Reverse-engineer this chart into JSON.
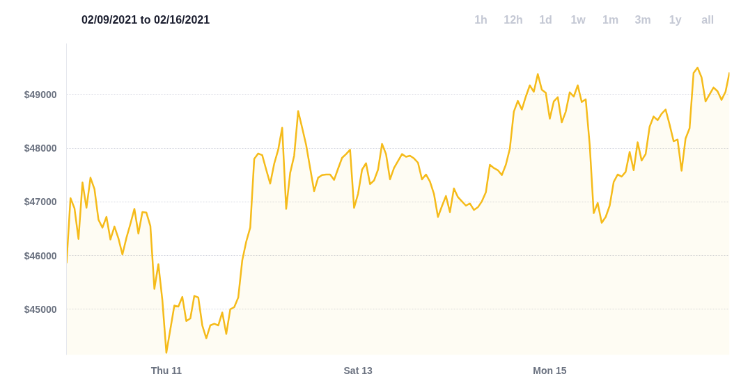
{
  "chart_data": {
    "type": "area",
    "title": "02/09/2021 to 02/16/2021",
    "annotations": [
      "1h",
      "12h",
      "1d",
      "1w",
      "1m",
      "3m",
      "1y",
      "all"
    ],
    "x": [
      "2021-02-09T23:00",
      "2021-02-10T00:00",
      "2021-02-10T01:00",
      "2021-02-10T02:00",
      "2021-02-10T03:00",
      "2021-02-10T04:00",
      "2021-02-10T05:00",
      "2021-02-10T06:00",
      "2021-02-10T07:00",
      "2021-02-10T08:00",
      "2021-02-10T09:00",
      "2021-02-10T10:00",
      "2021-02-10T11:00",
      "2021-02-10T12:00",
      "2021-02-10T13:00",
      "2021-02-10T14:00",
      "2021-02-10T15:00",
      "2021-02-10T16:00",
      "2021-02-10T17:00",
      "2021-02-10T18:00",
      "2021-02-10T19:00",
      "2021-02-10T20:00",
      "2021-02-10T21:00",
      "2021-02-10T22:00",
      "2021-02-10T23:00",
      "2021-02-11T00:00",
      "2021-02-11T01:00",
      "2021-02-11T02:00",
      "2021-02-11T03:00",
      "2021-02-11T04:00",
      "2021-02-11T05:00",
      "2021-02-11T06:00",
      "2021-02-11T07:00",
      "2021-02-11T08:00",
      "2021-02-11T09:00",
      "2021-02-11T10:00",
      "2021-02-11T11:00",
      "2021-02-11T12:00",
      "2021-02-11T13:00",
      "2021-02-11T14:00",
      "2021-02-11T15:00",
      "2021-02-11T16:00",
      "2021-02-11T17:00",
      "2021-02-11T18:00",
      "2021-02-11T19:00",
      "2021-02-11T20:00",
      "2021-02-11T21:00",
      "2021-02-11T22:00",
      "2021-02-11T23:00",
      "2021-02-12T00:00",
      "2021-02-12T01:00",
      "2021-02-12T02:00",
      "2021-02-12T03:00",
      "2021-02-12T04:00",
      "2021-02-12T05:00",
      "2021-02-12T06:00",
      "2021-02-12T07:00",
      "2021-02-12T08:00",
      "2021-02-12T09:00",
      "2021-02-12T10:00",
      "2021-02-12T11:00",
      "2021-02-12T12:00",
      "2021-02-12T13:00",
      "2021-02-12T14:00",
      "2021-02-12T15:00",
      "2021-02-12T16:00",
      "2021-02-12T17:00",
      "2021-02-12T18:00",
      "2021-02-12T19:00",
      "2021-02-12T20:00",
      "2021-02-12T21:00",
      "2021-02-12T22:00",
      "2021-02-12T23:00",
      "2021-02-13T00:00",
      "2021-02-13T01:00",
      "2021-02-13T02:00",
      "2021-02-13T03:00",
      "2021-02-13T04:00",
      "2021-02-13T05:00",
      "2021-02-13T06:00",
      "2021-02-13T07:00",
      "2021-02-13T08:00",
      "2021-02-13T09:00",
      "2021-02-13T10:00",
      "2021-02-13T11:00",
      "2021-02-13T12:00",
      "2021-02-13T13:00",
      "2021-02-13T14:00",
      "2021-02-13T15:00",
      "2021-02-13T16:00",
      "2021-02-13T17:00",
      "2021-02-13T18:00",
      "2021-02-13T19:00",
      "2021-02-13T20:00",
      "2021-02-13T21:00",
      "2021-02-13T22:00",
      "2021-02-13T23:00",
      "2021-02-14T00:00",
      "2021-02-14T01:00",
      "2021-02-14T02:00",
      "2021-02-14T03:00",
      "2021-02-14T04:00",
      "2021-02-14T05:00",
      "2021-02-14T06:00",
      "2021-02-14T07:00",
      "2021-02-14T08:00",
      "2021-02-14T09:00",
      "2021-02-14T10:00",
      "2021-02-14T11:00",
      "2021-02-14T12:00",
      "2021-02-14T13:00",
      "2021-02-14T14:00",
      "2021-02-14T15:00",
      "2021-02-14T16:00",
      "2021-02-14T17:00",
      "2021-02-14T18:00",
      "2021-02-14T19:00",
      "2021-02-14T20:00",
      "2021-02-14T21:00",
      "2021-02-14T22:00",
      "2021-02-14T23:00",
      "2021-02-15T00:00",
      "2021-02-15T01:00",
      "2021-02-15T02:00",
      "2021-02-15T03:00",
      "2021-02-15T04:00",
      "2021-02-15T05:00",
      "2021-02-15T06:00",
      "2021-02-15T07:00",
      "2021-02-15T08:00",
      "2021-02-15T09:00",
      "2021-02-15T10:00",
      "2021-02-15T11:00",
      "2021-02-15T12:00",
      "2021-02-15T13:00",
      "2021-02-15T14:00",
      "2021-02-15T15:00",
      "2021-02-15T16:00",
      "2021-02-15T17:00",
      "2021-02-15T18:00",
      "2021-02-15T19:00",
      "2021-02-15T20:00",
      "2021-02-15T21:00",
      "2021-02-15T22:00",
      "2021-02-15T23:00",
      "2021-02-16T00:00",
      "2021-02-16T01:00",
      "2021-02-16T02:00",
      "2021-02-16T03:00",
      "2021-02-16T04:00",
      "2021-02-16T05:00",
      "2021-02-16T06:00",
      "2021-02-16T07:00",
      "2021-02-16T08:00",
      "2021-02-16T09:00",
      "2021-02-16T10:00",
      "2021-02-16T11:00",
      "2021-02-16T12:00",
      "2021-02-16T13:00",
      "2021-02-16T14:00",
      "2021-02-16T15:00",
      "2021-02-16T16:00",
      "2021-02-16T17:00",
      "2021-02-16T18:00",
      "2021-02-16T19:00",
      "2021-02-16T20:00",
      "2021-02-16T21:00"
    ],
    "series": [
      {
        "color": "#f5bb1a",
        "values": [
          45860,
          47070,
          46880,
          46310,
          47360,
          46890,
          47450,
          47240,
          46670,
          46520,
          46720,
          46300,
          46540,
          46320,
          46020,
          46330,
          46590,
          46870,
          46410,
          46810,
          46800,
          46550,
          45380,
          45840,
          45170,
          44190,
          44630,
          45070,
          45050,
          45230,
          44780,
          44830,
          45250,
          45220,
          44700,
          44460,
          44700,
          44730,
          44700,
          44940,
          44540,
          45000,
          45040,
          45220,
          45910,
          46260,
          46520,
          47800,
          47900,
          47870,
          47600,
          47340,
          47710,
          47970,
          48380,
          46870,
          47540,
          47860,
          48690,
          48380,
          48060,
          47630,
          47200,
          47450,
          47500,
          47510,
          47510,
          47410,
          47620,
          47820,
          47890,
          47970,
          46890,
          47150,
          47600,
          47720,
          47330,
          47400,
          47600,
          48080,
          47890,
          47420,
          47630,
          47760,
          47890,
          47840,
          47860,
          47810,
          47730,
          47420,
          47510,
          47380,
          47150,
          46720,
          46920,
          47110,
          46810,
          47250,
          47090,
          47010,
          46930,
          46970,
          46850,
          46900,
          47010,
          47180,
          47690,
          47630,
          47590,
          47500,
          47690,
          47990,
          48680,
          48880,
          48720,
          48960,
          49170,
          49050,
          49380,
          49090,
          49030,
          48550,
          48870,
          48950,
          48480,
          48680,
          49040,
          48960,
          49170,
          48860,
          48910,
          48060,
          46790,
          46980,
          46610,
          46720,
          46930,
          47370,
          47510,
          47470,
          47560,
          47930,
          47590,
          48110,
          47770,
          47890,
          48400,
          48590,
          48520,
          48640,
          48720,
          48440,
          48130,
          48160,
          47580,
          48180,
          48370,
          49400,
          49500,
          49320,
          48870,
          49000,
          49130,
          49060,
          48900,
          49050,
          49410
        ]
      }
    ],
    "xlim": [
      "2021-02-09T23:00",
      "2021-02-16T21:00"
    ],
    "xticks": [
      {
        "value": "2021-02-11",
        "label": "Thu 11"
      },
      {
        "value": "2021-02-13",
        "label": "Sat 13"
      },
      {
        "value": "2021-02-15",
        "label": "Mon 15"
      }
    ],
    "ylim": [
      44150,
      49950
    ],
    "yticks": [
      {
        "value": 45000,
        "label": "$45000"
      },
      {
        "value": 46000,
        "label": "$46000"
      },
      {
        "value": 47000,
        "label": "$47000"
      },
      {
        "value": 48000,
        "label": "$48000"
      },
      {
        "value": 49000,
        "label": "$49000"
      }
    ],
    "grid": "y",
    "line_style": "solid",
    "marker": "none"
  }
}
